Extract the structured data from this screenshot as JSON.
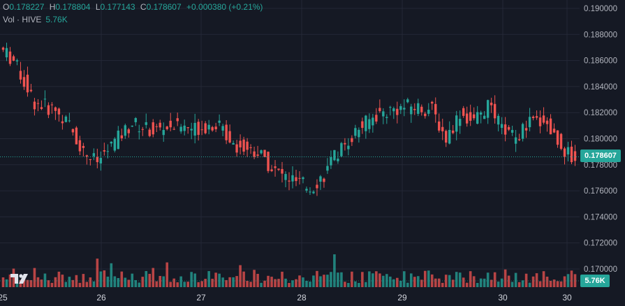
{
  "legend": {
    "o_label": "O",
    "o_value": "0.178227",
    "h_label": "H",
    "h_value": "0.178804",
    "l_label": "L",
    "l_value": "0.177143",
    "c_label": "C",
    "c_value": "0.178607",
    "change": "+0.000380 (+0.21%)"
  },
  "volume_legend": {
    "label": "Vol · HIVE",
    "value": "5.76K"
  },
  "price_tag": "0.178607",
  "volume_tag": "5.76K",
  "colors": {
    "up": "#26a69a",
    "down": "#ef5350",
    "background": "#151924",
    "grid": "#242836"
  },
  "icons": [
    "tradingview-logo-icon"
  ],
  "chart_data": {
    "type": "candlestick",
    "y_axis_ticks": [
      "0.190000",
      "0.188000",
      "0.186000",
      "0.184000",
      "0.182000",
      "0.180000",
      "0.178000",
      "0.176000",
      "0.174000",
      "0.172000",
      "0.170000"
    ],
    "ylim": [
      0.1695,
      0.1905
    ],
    "x_axis_ticks": [
      "25",
      "26",
      "27",
      "28",
      "29",
      "30",
      "30"
    ],
    "current_price": 0.178607,
    "last_volume": "5.76K"
  }
}
